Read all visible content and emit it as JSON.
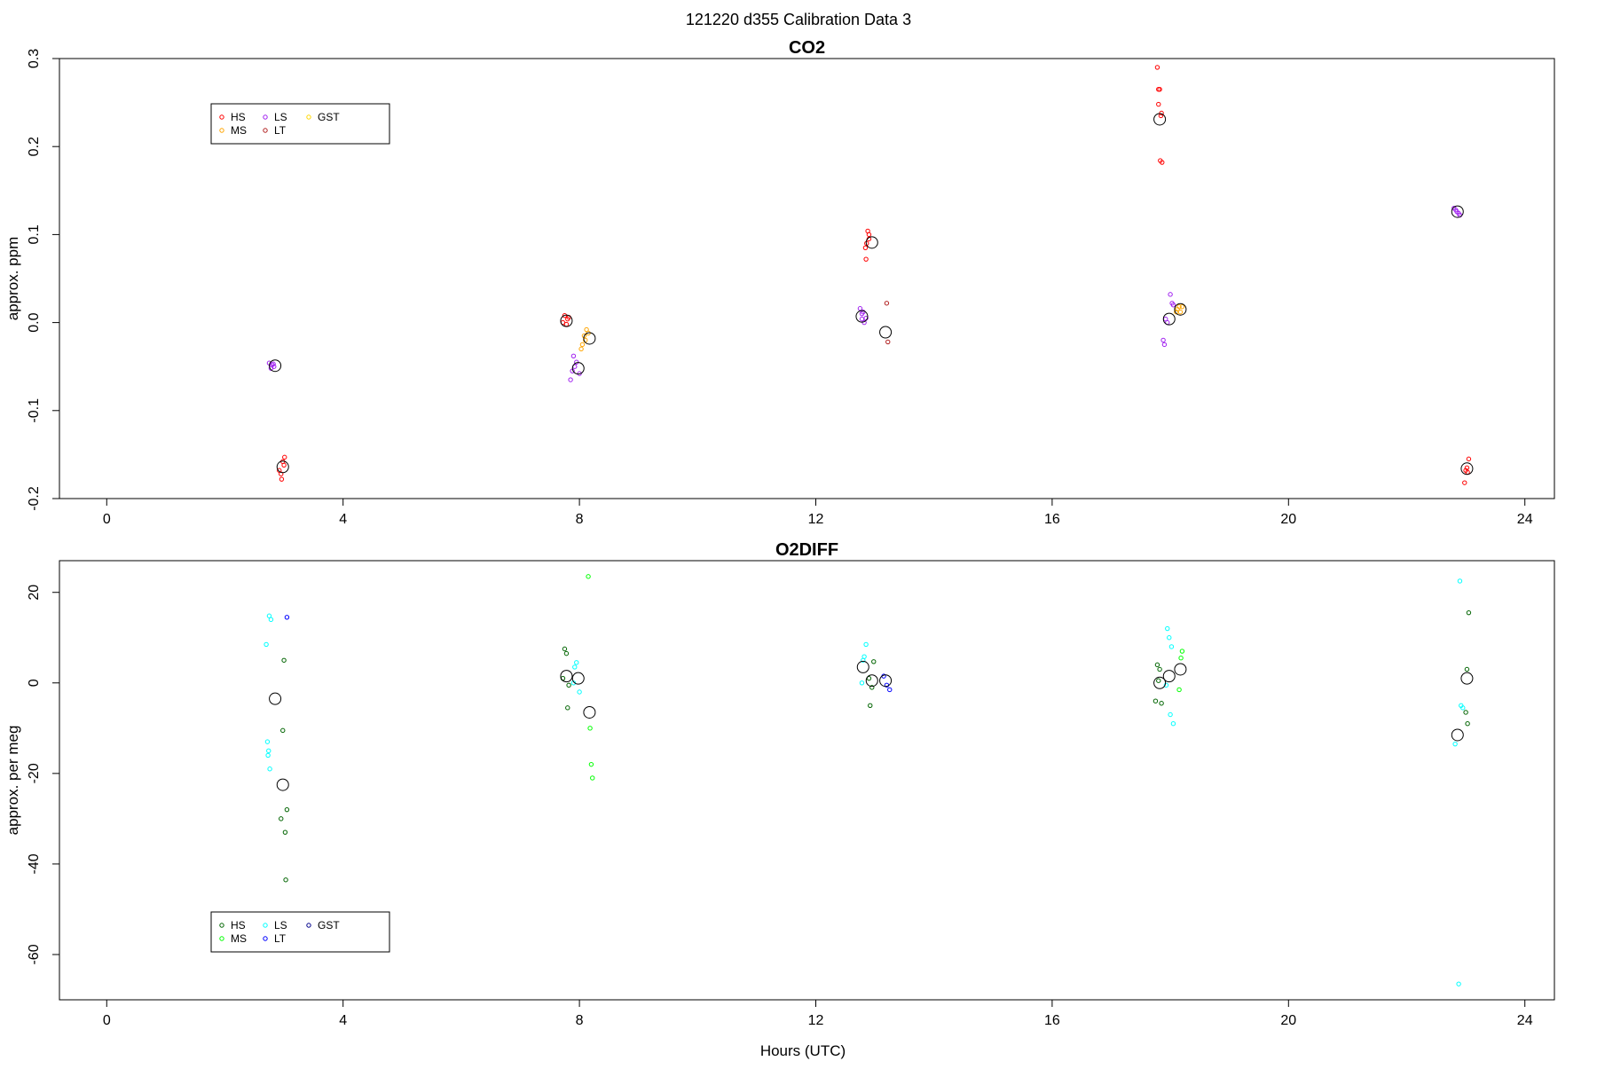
{
  "figure": {
    "title": "121220   d355   Calibration Data 3",
    "xlabel": "Hours (UTC)"
  },
  "chart_data": [
    {
      "type": "scatter",
      "title": "CO2",
      "ylabel": "approx. ppm",
      "xlim": [
        -0.8,
        24.5
      ],
      "ylim": [
        -0.2,
        0.3
      ],
      "xticks": [
        0,
        4,
        8,
        12,
        16,
        20,
        24
      ],
      "yticks": [
        -0.2,
        -0.1,
        0.0,
        0.1,
        0.2,
        0.3
      ],
      "ytick_labels": [
        "-0.2",
        "-0.1",
        "0.0",
        "0.1",
        "0.2",
        "0.3"
      ],
      "grid": false,
      "legend": {
        "placement": "top-left",
        "entries": [
          {
            "name": "HS",
            "color": "#ff0000"
          },
          {
            "name": "MS",
            "color": "#ffa500"
          },
          {
            "name": "LS",
            "color": "#a020f0"
          },
          {
            "name": "LT",
            "color": "#b22222"
          },
          {
            "name": "GST",
            "color": "#ffd700"
          }
        ]
      },
      "series": [
        {
          "name": "HS",
          "color": "#ff0000",
          "points": [
            [
              2.98,
              -0.158
            ],
            [
              3.01,
              -0.153
            ],
            [
              2.95,
              -0.172
            ],
            [
              2.92,
              -0.168
            ],
            [
              2.96,
              -0.178
            ],
            [
              3.0,
              -0.162
            ],
            [
              7.75,
              0.008
            ],
            [
              7.8,
              0.004
            ],
            [
              7.72,
              0.0
            ],
            [
              7.78,
              -0.002
            ],
            [
              7.82,
              0.006
            ],
            [
              12.88,
              0.104
            ],
            [
              12.9,
              0.1
            ],
            [
              12.86,
              0.09
            ],
            [
              12.84,
              0.085
            ],
            [
              12.85,
              0.072
            ],
            [
              12.9,
              0.095
            ],
            [
              17.78,
              0.29
            ],
            [
              17.8,
              0.265
            ],
            [
              17.82,
              0.265
            ],
            [
              17.8,
              0.248
            ],
            [
              17.85,
              0.238
            ],
            [
              17.83,
              0.184
            ],
            [
              17.86,
              0.182
            ],
            [
              17.84,
              0.235
            ],
            [
              23.05,
              -0.155
            ],
            [
              23.02,
              -0.165
            ],
            [
              23.0,
              -0.168
            ],
            [
              23.03,
              -0.17
            ],
            [
              22.98,
              -0.182
            ]
          ]
        },
        {
          "name": "MS",
          "color": "#ffa500",
          "points": [
            [
              8.12,
              -0.008
            ],
            [
              8.15,
              -0.012
            ],
            [
              8.08,
              -0.015
            ],
            [
              8.05,
              -0.025
            ],
            [
              8.03,
              -0.03
            ],
            [
              8.1,
              -0.02
            ],
            [
              18.15,
              0.018
            ],
            [
              18.1,
              0.012
            ],
            [
              18.2,
              0.018
            ],
            [
              18.17,
              0.012
            ],
            [
              18.12,
              0.015
            ]
          ]
        },
        {
          "name": "LS",
          "color": "#a020f0",
          "points": [
            [
              2.75,
              -0.046
            ],
            [
              2.8,
              -0.048
            ],
            [
              2.78,
              -0.052
            ],
            [
              2.83,
              -0.05
            ],
            [
              2.82,
              -0.047
            ],
            [
              7.9,
              -0.038
            ],
            [
              7.95,
              -0.045
            ],
            [
              7.88,
              -0.055
            ],
            [
              8.0,
              -0.058
            ],
            [
              7.85,
              -0.065
            ],
            [
              7.92,
              -0.05
            ],
            [
              12.75,
              0.016
            ],
            [
              12.8,
              0.012
            ],
            [
              12.85,
              0.005
            ],
            [
              12.78,
              0.01
            ],
            [
              12.82,
              0.0
            ],
            [
              12.78,
              0.004
            ],
            [
              17.92,
              0.004
            ],
            [
              17.95,
              0.0
            ],
            [
              18.0,
              0.032
            ],
            [
              18.03,
              0.022
            ],
            [
              17.88,
              -0.02
            ],
            [
              17.9,
              -0.025
            ],
            [
              18.05,
              0.02
            ],
            [
              22.8,
              0.13
            ],
            [
              22.85,
              0.126
            ],
            [
              22.9,
              0.122
            ],
            [
              22.88,
              0.124
            ],
            [
              22.83,
              0.128
            ]
          ]
        },
        {
          "name": "LT",
          "color": "#b22222",
          "points": [
            [
              13.2,
              0.022
            ],
            [
              13.22,
              -0.022
            ]
          ]
        },
        {
          "name": "GST",
          "color": "#ffd700",
          "points": []
        }
      ],
      "means": [
        [
          2.85,
          -0.049
        ],
        [
          2.98,
          -0.164
        ],
        [
          7.78,
          0.002
        ],
        [
          7.98,
          -0.052
        ],
        [
          8.17,
          -0.018
        ],
        [
          12.78,
          0.007
        ],
        [
          12.95,
          0.091
        ],
        [
          13.18,
          -0.011
        ],
        [
          17.82,
          0.231
        ],
        [
          17.98,
          0.004
        ],
        [
          18.17,
          0.015
        ],
        [
          22.86,
          0.126
        ],
        [
          23.02,
          -0.166
        ]
      ]
    },
    {
      "type": "scatter",
      "title": "O2DIFF",
      "ylabel": "approx. per meg",
      "xlim": [
        -0.8,
        24.5
      ],
      "ylim": [
        -70,
        27
      ],
      "xticks": [
        0,
        4,
        8,
        12,
        16,
        20,
        24
      ],
      "yticks": [
        -60,
        -40,
        -20,
        0,
        20
      ],
      "ytick_labels": [
        "-60",
        "-40",
        "-20",
        "0",
        "20"
      ],
      "grid": false,
      "legend": {
        "placement": "bottom-left",
        "entries": [
          {
            "name": "HS",
            "color": "#006400"
          },
          {
            "name": "MS",
            "color": "#00ff00"
          },
          {
            "name": "LS",
            "color": "#00ffff"
          },
          {
            "name": "LT",
            "color": "#0000ff"
          },
          {
            "name": "GST",
            "color": "#00008b"
          }
        ]
      },
      "series": [
        {
          "name": "HS",
          "color": "#006400",
          "points": [
            [
              3.0,
              5.0
            ],
            [
              2.98,
              -10.5
            ],
            [
              2.95,
              -30.0
            ],
            [
              3.02,
              -33.0
            ],
            [
              3.05,
              -28.0
            ],
            [
              3.03,
              -43.5
            ],
            [
              7.75,
              7.5
            ],
            [
              7.78,
              6.5
            ],
            [
              7.72,
              1.0
            ],
            [
              7.8,
              -5.5
            ],
            [
              7.82,
              -0.5
            ],
            [
              12.98,
              4.7
            ],
            [
              12.9,
              1.0
            ],
            [
              12.95,
              -1.0
            ],
            [
              12.92,
              -5.0
            ],
            [
              17.78,
              4.0
            ],
            [
              17.82,
              3.0
            ],
            [
              17.75,
              -4.0
            ],
            [
              17.85,
              -4.5
            ],
            [
              17.8,
              0.5
            ],
            [
              23.05,
              15.5
            ],
            [
              23.02,
              3.0
            ],
            [
              23.0,
              -6.5
            ],
            [
              23.03,
              -9.0
            ]
          ]
        },
        {
          "name": "MS",
          "color": "#00ff00",
          "points": [
            [
              8.15,
              23.5
            ],
            [
              8.18,
              -10.0
            ],
            [
              8.2,
              -18.0
            ],
            [
              8.22,
              -21.0
            ],
            [
              18.2,
              7.0
            ],
            [
              18.18,
              5.5
            ],
            [
              18.15,
              -1.5
            ]
          ]
        },
        {
          "name": "LS",
          "color": "#00ffff",
          "points": [
            [
              2.75,
              14.8
            ],
            [
              2.78,
              14.0
            ],
            [
              2.7,
              8.5
            ],
            [
              2.72,
              -13.0
            ],
            [
              2.74,
              -15.0
            ],
            [
              2.73,
              -16.0
            ],
            [
              2.76,
              -19.0
            ],
            [
              7.92,
              3.5
            ],
            [
              7.95,
              4.5
            ],
            [
              8.0,
              -2.0
            ],
            [
              7.9,
              0.0
            ],
            [
              12.85,
              8.5
            ],
            [
              12.8,
              5.0
            ],
            [
              12.82,
              5.8
            ],
            [
              12.78,
              0.0
            ],
            [
              17.95,
              12.0
            ],
            [
              17.98,
              10.0
            ],
            [
              18.02,
              8.0
            ],
            [
              18.0,
              -7.0
            ],
            [
              18.05,
              -9.0
            ],
            [
              17.93,
              -0.5
            ],
            [
              22.9,
              22.5
            ],
            [
              22.92,
              -5.0
            ],
            [
              22.95,
              -5.5
            ],
            [
              22.82,
              -13.5
            ],
            [
              22.88,
              -66.5
            ]
          ]
        },
        {
          "name": "LT",
          "color": "#0000ff",
          "points": [
            [
              3.05,
              14.5
            ],
            [
              13.15,
              1.5
            ],
            [
              13.2,
              -0.5
            ],
            [
              13.25,
              -1.5
            ]
          ]
        },
        {
          "name": "GST",
          "color": "#00008b",
          "points": []
        }
      ],
      "means": [
        [
          2.85,
          -3.5
        ],
        [
          2.98,
          -22.5
        ],
        [
          7.78,
          1.5
        ],
        [
          7.98,
          1.0
        ],
        [
          8.17,
          -6.5
        ],
        [
          12.8,
          3.5
        ],
        [
          12.95,
          0.5
        ],
        [
          13.18,
          0.5
        ],
        [
          17.82,
          0.0
        ],
        [
          17.98,
          1.5
        ],
        [
          18.17,
          3.0
        ],
        [
          22.86,
          -11.5
        ],
        [
          23.02,
          1.0
        ]
      ]
    }
  ]
}
